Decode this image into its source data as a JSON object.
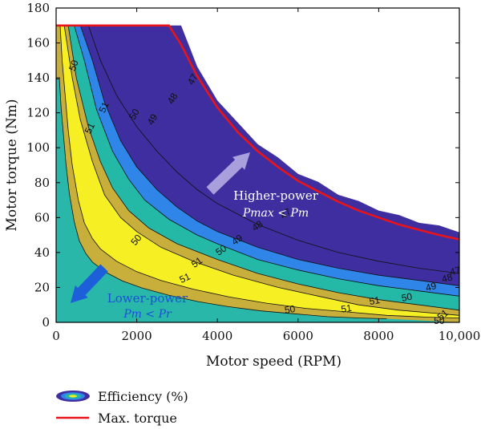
{
  "chart_data": {
    "type": "contour",
    "xlabel": "Motor speed (RPM)",
    "ylabel": "Motor torque (Nm)",
    "xlim": [
      0,
      10000
    ],
    "ylim": [
      0,
      180
    ],
    "xticks": [
      "0",
      "2000",
      "4000",
      "6000",
      "8000",
      "10,000"
    ],
    "yticks": [
      "0",
      "20",
      "40",
      "60",
      "80",
      "100",
      "120",
      "140",
      "160",
      "180"
    ],
    "x_tick_values": [
      0,
      2000,
      4000,
      6000,
      8000,
      10000
    ],
    "y_tick_values": [
      0,
      20,
      40,
      60,
      80,
      100,
      120,
      140,
      160,
      180
    ],
    "grid": false,
    "max_torque": {
      "name": "Max. torque",
      "color": "#e8141a",
      "x": [
        0,
        2800,
        3100,
        3500,
        4000,
        4500,
        5000,
        5500,
        6000,
        6500,
        7000,
        7500,
        8000,
        8500,
        9000,
        9500,
        10000
      ],
      "y": [
        170,
        170,
        159,
        141,
        123,
        109,
        98,
        89,
        81,
        75,
        69,
        64,
        60,
        56,
        53,
        50,
        47.5
      ]
    },
    "contours": [
      {
        "level": 47,
        "color": "#3b2e9e",
        "x": [
          800,
          1100,
          1500,
          2000,
          2500,
          3000,
          3500,
          4000,
          5000,
          6000,
          7000,
          8000,
          9000,
          10000
        ],
        "y": [
          170,
          150,
          130,
          112,
          98,
          86,
          76,
          68,
          56,
          47,
          40,
          35,
          31,
          28
        ]
      },
      {
        "level": 48,
        "color": "#2f84e6",
        "x": [
          600,
          900,
          1200,
          1600,
          2000,
          2500,
          3000,
          3500,
          4000,
          5000,
          6000,
          7000,
          8000,
          9000,
          10000
        ],
        "y": [
          170,
          150,
          126,
          104,
          89,
          76,
          66,
          58,
          52,
          43,
          36,
          31,
          27,
          24,
          21
        ]
      },
      {
        "level": 49,
        "color": "#22b9a4",
        "x": [
          450,
          700,
          1000,
          1400,
          1800,
          2200,
          2800,
          3500,
          4000,
          5000,
          6000,
          7000,
          8000,
          9000,
          10000
        ],
        "y": [
          170,
          150,
          122,
          98,
          82,
          70,
          59,
          50,
          45,
          36,
          30,
          25,
          21,
          18,
          15
        ]
      },
      {
        "level": 50,
        "color": "#c9b23c",
        "x": [
          300,
          500,
          800,
          1100,
          1400,
          1800,
          2300,
          3000,
          4000,
          5000,
          6000,
          7000,
          8000,
          9000,
          10000
        ],
        "y": [
          170,
          140,
          112,
          92,
          77,
          64,
          54,
          45,
          36,
          28,
          22,
          17,
          13,
          10,
          7
        ]
      },
      {
        "level": 51,
        "color": "#f7f021",
        "x": [
          200,
          400,
          600,
          900,
          1200,
          1600,
          2000,
          2600,
          3400,
          4400,
          5500,
          6500,
          7500,
          8500,
          9500,
          10000
        ],
        "y": [
          170,
          140,
          116,
          92,
          73,
          60,
          52,
          43,
          35,
          27,
          20,
          15,
          10,
          7,
          5,
          4
        ]
      }
    ],
    "lower_region": {
      "x": [
        0,
        100,
        150,
        300,
        400,
        550,
        700,
        900,
        1100,
        1500,
        2000,
        2600,
        3400,
        4300,
        5200,
        6200,
        7200,
        8200,
        9200,
        10000
      ],
      "y": [
        170,
        170,
        150,
        110,
        90,
        70,
        57,
        48,
        42,
        35,
        29,
        24,
        19,
        14.5,
        11,
        8,
        6,
        4,
        3,
        2.5
      ]
    },
    "contour_labels": [
      {
        "text": "47",
        "x": 3400,
        "y": 139,
        "angle": -60
      },
      {
        "text": "48",
        "x": 2900,
        "y": 128,
        "angle": -60
      },
      {
        "text": "49",
        "x": 2400,
        "y": 116,
        "angle": -60
      },
      {
        "text": "50",
        "x": 450,
        "y": 147,
        "angle": -70
      },
      {
        "text": "50",
        "x": 1950,
        "y": 119,
        "angle": -60
      },
      {
        "text": "51",
        "x": 1200,
        "y": 123,
        "angle": -65
      },
      {
        "text": "51",
        "x": 850,
        "y": 111,
        "angle": -65
      },
      {
        "text": "47",
        "x": 5700,
        "y": 62,
        "angle": -35
      },
      {
        "text": "48",
        "x": 5000,
        "y": 55,
        "angle": -35
      },
      {
        "text": "49",
        "x": 4500,
        "y": 47,
        "angle": -35
      },
      {
        "text": "50",
        "x": 4100,
        "y": 41,
        "angle": -35
      },
      {
        "text": "51",
        "x": 3500,
        "y": 34,
        "angle": -35
      },
      {
        "text": "50",
        "x": 2000,
        "y": 47,
        "angle": -50
      },
      {
        "text": "51",
        "x": 3200,
        "y": 25,
        "angle": -25
      },
      {
        "text": "50",
        "x": 5800,
        "y": 7,
        "angle": -10
      },
      {
        "text": "51",
        "x": 7200,
        "y": 7.5,
        "angle": -8
      },
      {
        "text": "51",
        "x": 7900,
        "y": 12,
        "angle": -10
      },
      {
        "text": "50",
        "x": 8700,
        "y": 14,
        "angle": -12
      },
      {
        "text": "49",
        "x": 9300,
        "y": 20,
        "angle": -15
      },
      {
        "text": "48",
        "x": 9700,
        "y": 25,
        "angle": -15
      },
      {
        "text": "47",
        "x": 9900,
        "y": 29,
        "angle": -15
      },
      {
        "text": "51",
        "x": 9600,
        "y": 4,
        "angle": -40
      },
      {
        "text": "50",
        "x": 9500,
        "y": 0.5,
        "angle": 0
      }
    ],
    "annotations": {
      "higher": {
        "title": "Higher-power",
        "sub": "Pmax < Pm",
        "x": 7400,
        "y": 67,
        "color": "#ffffff"
      },
      "lower": {
        "title": "Lower-power",
        "sub": "Pm < Pr",
        "x": 3300,
        "y": 11,
        "color": "#1c4fd6"
      }
    },
    "colors": {
      "base": "#28b7a9",
      "dark": "#3e2ea0",
      "blue": "#2f85e8",
      "teal": "#24b8a6",
      "gold": "#c8ae3a",
      "yellow": "#f6ef24",
      "frame": "#000000"
    },
    "legend": [
      {
        "label": "Efficiency (%)",
        "icon": "contour-ellipse-icon"
      },
      {
        "label": "Max. torque",
        "icon": "red-line-icon",
        "color": "#e8141a"
      }
    ]
  }
}
